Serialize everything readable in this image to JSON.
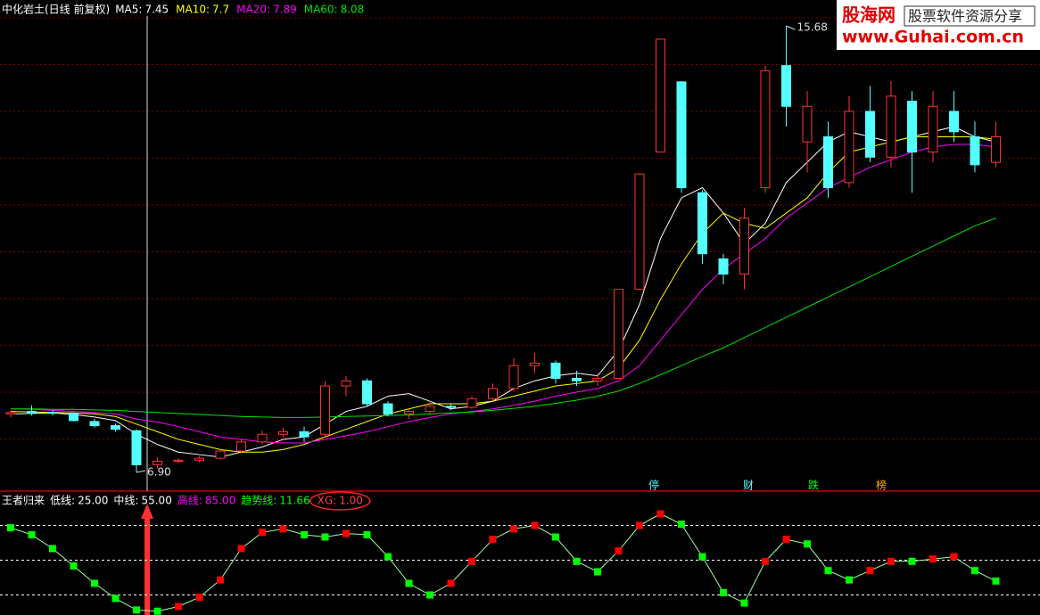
{
  "watermark": {
    "brand": "股海网",
    "slogan": "股票软件资源分享",
    "url": "www.Guhai.com.cn"
  },
  "chart_data": [
    {
      "type": "candlestick",
      "title": "中化岩土(日线 前复权)",
      "ylim": [
        6.55,
        15.84
      ],
      "open": [
        8.05,
        8.1,
        8.08,
        8.06,
        7.9,
        7.82,
        7.72,
        7.05,
        7.12,
        7.14,
        7.18,
        7.32,
        7.5,
        7.65,
        7.7,
        7.65,
        8.6,
        8.7,
        8.25,
        8.05,
        8.1,
        8.2,
        8.18,
        8.35,
        8.55,
        9.0,
        9.05,
        8.75,
        8.7,
        8.75,
        10.5,
        13.2,
        14.58,
        12.4,
        11.1,
        10.8,
        12.5,
        14.9,
        13.4,
        13.5,
        12.6,
        14.0,
        13.1,
        14.2,
        13.2,
        14.0,
        13.5,
        13.0
      ],
      "high": [
        8.12,
        8.22,
        8.12,
        8.08,
        7.95,
        7.86,
        7.75,
        7.2,
        7.18,
        7.22,
        7.35,
        7.55,
        7.72,
        7.78,
        7.8,
        8.7,
        8.8,
        8.75,
        8.3,
        8.15,
        8.3,
        8.25,
        8.4,
        8.65,
        9.15,
        9.25,
        9.1,
        8.9,
        8.85,
        10.5,
        12.77,
        15.42,
        14.6,
        12.45,
        11.2,
        12.1,
        14.9,
        15.68,
        14.4,
        13.8,
        14.3,
        14.5,
        14.6,
        14.4,
        14.4,
        14.4,
        13.8,
        13.8
      ],
      "low": [
        7.98,
        8.02,
        8.02,
        7.9,
        7.78,
        7.7,
        6.9,
        6.98,
        7.08,
        7.1,
        7.15,
        7.28,
        7.45,
        7.6,
        7.5,
        7.6,
        8.4,
        8.2,
        8.0,
        7.95,
        8.05,
        8.12,
        8.15,
        8.3,
        8.5,
        8.85,
        8.65,
        8.6,
        8.6,
        8.75,
        10.5,
        13.2,
        12.4,
        11.0,
        10.6,
        10.5,
        12.4,
        13.7,
        12.8,
        12.3,
        12.5,
        13.0,
        12.9,
        12.4,
        13.0,
        13.4,
        12.8,
        12.9
      ],
      "close": [
        8.08,
        8.06,
        8.07,
        7.92,
        7.82,
        7.75,
        7.05,
        7.12,
        7.14,
        7.18,
        7.32,
        7.5,
        7.65,
        7.7,
        7.6,
        8.6,
        8.7,
        8.25,
        8.05,
        8.1,
        8.2,
        8.18,
        8.35,
        8.55,
        9.0,
        9.05,
        8.75,
        8.7,
        8.75,
        10.5,
        12.77,
        15.42,
        12.5,
        11.2,
        10.8,
        11.9,
        14.8,
        14.1,
        14.1,
        12.5,
        14.0,
        13.1,
        14.3,
        13.2,
        14.1,
        13.6,
        12.95,
        13.5
      ],
      "up_color": "#ff3232",
      "down_color": "#54ffff",
      "max_label": "15.68",
      "min_label": "6.90",
      "events": [
        "停",
        "财",
        "跌",
        "榜"
      ],
      "series": [
        {
          "name": "MA5:",
          "current": 7.45,
          "color": "#ffffff",
          "values": [
            8.05,
            8.06,
            8.07,
            8.04,
            7.99,
            7.92,
            7.65,
            7.45,
            7.3,
            7.25,
            7.2,
            7.3,
            7.4,
            7.55,
            7.6,
            7.85,
            8.1,
            8.2,
            8.4,
            8.45,
            8.3,
            8.15,
            8.2,
            8.3,
            8.55,
            8.7,
            8.8,
            8.85,
            8.8,
            9.3,
            10.2,
            11.5,
            12.3,
            12.5,
            12.0,
            11.4,
            11.8,
            12.6,
            13.0,
            13.4,
            13.6,
            13.5,
            13.4,
            13.5,
            13.6,
            13.7,
            13.5,
            13.4
          ]
        },
        {
          "name": "MA10:",
          "current": 7.7,
          "color": "#ffff00",
          "values": [
            8.1,
            8.09,
            8.08,
            8.07,
            8.05,
            8.0,
            7.85,
            7.7,
            7.55,
            7.45,
            7.35,
            7.3,
            7.3,
            7.35,
            7.45,
            7.6,
            7.75,
            7.9,
            8.05,
            8.15,
            8.25,
            8.25,
            8.25,
            8.3,
            8.4,
            8.5,
            8.6,
            8.65,
            8.7,
            8.95,
            9.5,
            10.3,
            11.0,
            11.6,
            12.0,
            11.8,
            11.7,
            12.0,
            12.3,
            12.8,
            13.2,
            13.3,
            13.4,
            13.5,
            13.5,
            13.5,
            13.5,
            13.45
          ]
        },
        {
          "name": "MA20:",
          "current": 7.89,
          "color": "#ff00ff",
          "values": [
            8.15,
            8.14,
            8.12,
            8.1,
            8.08,
            8.05,
            7.95,
            7.89,
            7.8,
            7.7,
            7.6,
            7.55,
            7.5,
            7.48,
            7.48,
            7.55,
            7.62,
            7.7,
            7.8,
            7.9,
            7.98,
            8.05,
            8.1,
            8.15,
            8.22,
            8.3,
            8.4,
            8.48,
            8.55,
            8.7,
            9.0,
            9.5,
            10.0,
            10.5,
            10.9,
            11.2,
            11.5,
            11.9,
            12.2,
            12.5,
            12.7,
            12.9,
            13.05,
            13.2,
            13.3,
            13.35,
            13.35,
            13.3
          ]
        },
        {
          "name": "MA60:",
          "current": 8.08,
          "color": "#00e000",
          "values": [
            8.15,
            8.15,
            8.14,
            8.14,
            8.13,
            8.12,
            8.1,
            8.08,
            8.06,
            8.04,
            8.02,
            8.0,
            7.99,
            7.98,
            7.98,
            7.99,
            8.0,
            8.01,
            8.02,
            8.03,
            8.05,
            8.07,
            8.09,
            8.12,
            8.16,
            8.2,
            8.26,
            8.32,
            8.4,
            8.5,
            8.65,
            8.82,
            9.0,
            9.18,
            9.35,
            9.55,
            9.75,
            9.95,
            10.15,
            10.35,
            10.55,
            10.75,
            10.95,
            11.15,
            11.35,
            11.55,
            11.75,
            11.9
          ]
        }
      ]
    },
    {
      "type": "line",
      "title": "王者归来",
      "ylim": [
        0,
        100
      ],
      "levels": [
        {
          "name": "低线:",
          "level": {
            "value": 25,
            "label": "25.00"
          },
          "color": "#ffffff"
        },
        {
          "name": "中线:",
          "level": {
            "value": 55,
            "label": "55.00"
          },
          "color": "#ffffff"
        },
        {
          "name": "高线:",
          "level": {
            "value": 85,
            "label": "85.00"
          },
          "color": "#ff00ff"
        }
      ],
      "rise_color": "#ff0000",
      "fall_color": "#00ff00",
      "series": [
        {
          "name": "趋势线:",
          "current": 11.66,
          "color": "#00ff00",
          "values": [
            83,
            77,
            65,
            50,
            35,
            22,
            12,
            11,
            15,
            23,
            38,
            65,
            79,
            82,
            77,
            75,
            78,
            77,
            58,
            35,
            25,
            35,
            54,
            73,
            82,
            85,
            75,
            54,
            45,
            63,
            85,
            95,
            86,
            58,
            27,
            18,
            54,
            73,
            69,
            46,
            38,
            46,
            54,
            54,
            56,
            58,
            46,
            37
          ]
        }
      ],
      "xg": {
        "name": "XG:",
        "current": {
          "value": 1,
          "label": "1.00"
        },
        "color": "#ff4040"
      }
    }
  ]
}
